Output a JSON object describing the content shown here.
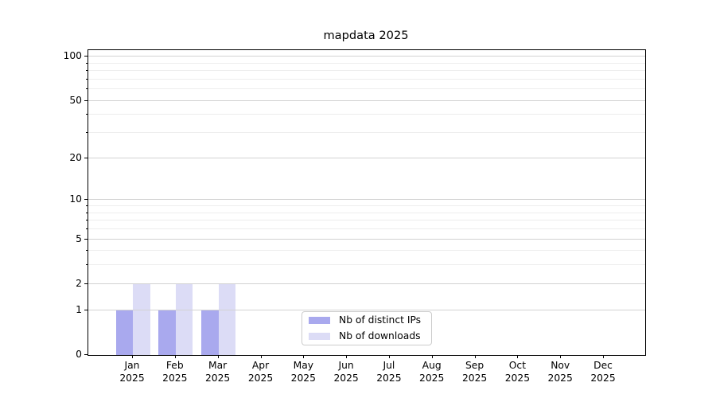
{
  "chart_data": {
    "type": "bar",
    "title": "mapdata 2025",
    "x_year": "2025",
    "categories": [
      "Jan",
      "Feb",
      "Mar",
      "Apr",
      "May",
      "Jun",
      "Jul",
      "Aug",
      "Sep",
      "Oct",
      "Nov",
      "Dec"
    ],
    "series": [
      {
        "name": "Nb of distinct IPs",
        "color": "#a9a9ee",
        "values": [
          1,
          1,
          1,
          0,
          0,
          0,
          0,
          0,
          0,
          0,
          0,
          0
        ]
      },
      {
        "name": "Nb of downloads",
        "color": "#dcdcf6",
        "values": [
          2,
          2,
          2,
          0,
          0,
          0,
          0,
          0,
          0,
          0,
          0,
          0
        ]
      }
    ],
    "y_scale": "log10(1+y)",
    "y_major_ticks": [
      0,
      1,
      2,
      5,
      10,
      20,
      50,
      100
    ],
    "y_minor_ticks": [
      3,
      4,
      6,
      7,
      8,
      9,
      30,
      40,
      60,
      70,
      80,
      90
    ],
    "ylim": [
      0,
      110
    ],
    "xlabel": "",
    "ylabel": "",
    "grid": "horizontal",
    "legend": {
      "position": "lower center",
      "entries": [
        "Nb of distinct IPs",
        "Nb of downloads"
      ]
    }
  }
}
